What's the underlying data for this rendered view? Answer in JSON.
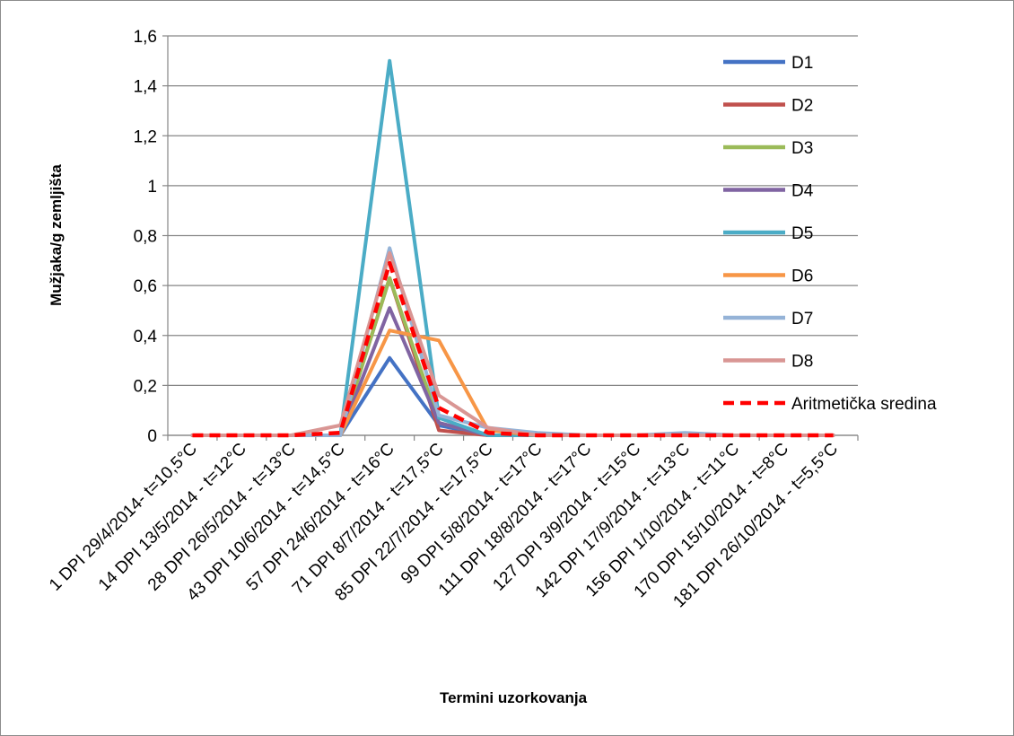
{
  "chart_data": {
    "type": "line",
    "title": "",
    "xlabel": "Termini uzorkovanja",
    "ylabel": "Mužjaka/g zemljišta",
    "ylim": [
      0,
      1.6
    ],
    "yticks": [
      "0",
      "0,2",
      "0,4",
      "0,6",
      "0,8",
      "1",
      "1,2",
      "1,4",
      "1,6"
    ],
    "ytick_values": [
      0,
      0.2,
      0.4,
      0.6,
      0.8,
      1.0,
      1.2,
      1.4,
      1.6
    ],
    "grid": true,
    "legend_position": "right",
    "categories": [
      "1 DPI 29/4/2014- t=10,5°C",
      "14 DPI 13/5/2014 -  t=12°C",
      "28 DPI 26/5/2014 -  t=13°C",
      "43 DPI 10/6/2014 -  t=14,5°C",
      "57 DPI 24/6/2014 -  t=16°C",
      "71 DPI 8/7/2014 -  t=17,5°C",
      "85 DPI 22/7/2014 -  t=17,5°C",
      "99 DPI 5/8/2014 -  t=17°C",
      "111 DPI 18/8/2014 -  t=17°C",
      "127 DPI  3/9/2014 -  t=15°C",
      "142 DPI 17/9/2014 -  t=13°C",
      "156 DPI 1/10/2014 -  t=11°C",
      "170 DPI 15/10/2014 -  t=8°C",
      "181 DPI 26/10/2014 -  t=5,5°C"
    ],
    "series": [
      {
        "name": "D1",
        "color": "#4472c4",
        "dashed": false,
        "values": [
          0,
          0,
          0,
          0,
          0.31,
          0.04,
          0,
          0,
          0,
          0,
          0,
          0,
          0,
          0
        ]
      },
      {
        "name": "D2",
        "color": "#c0504d",
        "dashed": false,
        "values": [
          0,
          0,
          0,
          0,
          0.63,
          0.02,
          0,
          0,
          0,
          0,
          0,
          0,
          0,
          0
        ]
      },
      {
        "name": "D3",
        "color": "#9bbb59",
        "dashed": false,
        "values": [
          0,
          0,
          0,
          0,
          0.63,
          0.05,
          0,
          0,
          0,
          0,
          0,
          0,
          0,
          0
        ]
      },
      {
        "name": "D4",
        "color": "#8064a2",
        "dashed": false,
        "values": [
          0,
          0,
          0,
          0,
          0.51,
          0.05,
          0,
          0,
          0,
          0,
          0,
          0,
          0,
          0
        ]
      },
      {
        "name": "D5",
        "color": "#4bacc6",
        "dashed": false,
        "values": [
          0,
          0,
          0,
          0,
          1.5,
          0.07,
          0,
          0,
          0,
          0,
          0,
          0,
          0,
          0
        ]
      },
      {
        "name": "D6",
        "color": "#f79646",
        "dashed": false,
        "values": [
          0,
          0,
          0,
          0,
          0.42,
          0.38,
          0.02,
          0,
          0,
          0,
          0,
          0,
          0,
          0
        ]
      },
      {
        "name": "D7",
        "color": "#95b3d7",
        "dashed": false,
        "values": [
          0,
          0,
          0,
          0,
          0.75,
          0.08,
          0.03,
          0.01,
          0,
          0,
          0.01,
          0,
          0,
          0
        ]
      },
      {
        "name": "D8",
        "color": "#d99694",
        "dashed": false,
        "values": [
          0,
          0,
          0,
          0.04,
          0.73,
          0.16,
          0.03,
          0,
          0,
          0,
          0,
          0,
          0,
          0
        ]
      },
      {
        "name": "Aritmetička sredina",
        "color": "#ff0000",
        "dashed": true,
        "values": [
          0,
          0,
          0,
          0.01,
          0.69,
          0.11,
          0.01,
          0,
          0,
          0,
          0,
          0,
          0,
          0
        ]
      }
    ]
  }
}
